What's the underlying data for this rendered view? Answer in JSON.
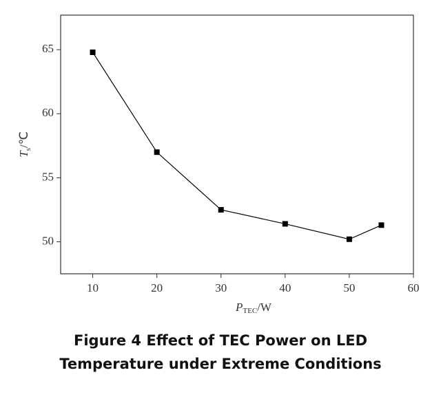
{
  "chart_data": {
    "type": "line",
    "x_label": {
      "symbol": "P",
      "subscript": "TEC",
      "unit": "/W"
    },
    "y_label": {
      "symbol": "T",
      "subscript": "s",
      "unit": "/℃"
    },
    "x": [
      10,
      20,
      30,
      40,
      50,
      55
    ],
    "series": [
      {
        "color": "#000000",
        "values": [
          64.8,
          57.0,
          52.5,
          51.4,
          50.2,
          51.3
        ]
      }
    ],
    "xlim": [
      5,
      60
    ],
    "xticks": [
      10,
      20,
      30,
      40,
      50,
      60
    ],
    "ylim": [
      47.5,
      67.7
    ],
    "yticks": [
      50,
      55,
      60,
      65
    ],
    "grid": false
  },
  "caption": "Figure 4 Effect of TEC Power on LED Temperature under Extreme Conditions"
}
